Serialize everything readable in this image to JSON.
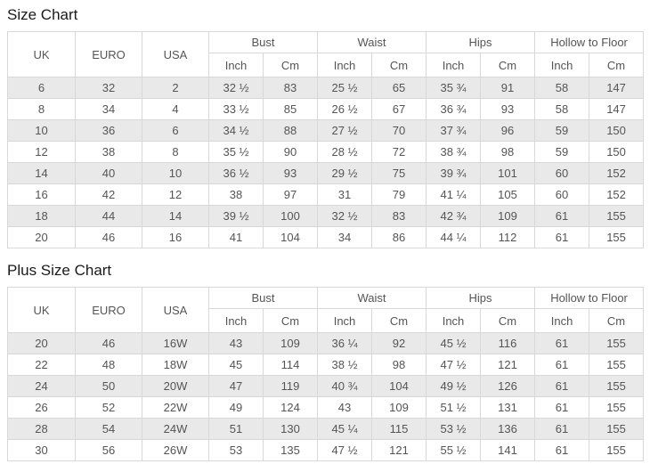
{
  "colors": {
    "stripe_row_background": "#e9e9e9",
    "table_border": "#d8d8d8",
    "cell_text": "#555555",
    "title_text": "#1a1a1a",
    "page_background": "#ffffff"
  },
  "tables": [
    {
      "title": "Size Chart",
      "group_headers": [
        "UK",
        "EURO",
        "USA",
        "Bust",
        "Waist",
        "Hips",
        "Hollow to Floor"
      ],
      "sub_headers": [
        "Inch",
        "Cm"
      ],
      "columns": [
        "UK",
        "EURO",
        "USA",
        "Bust Inch",
        "Bust Cm",
        "Waist Inch",
        "Waist Cm",
        "Hips Inch",
        "Hips Cm",
        "Hollow to Floor Inch",
        "Hollow to Floor Cm"
      ],
      "rows": [
        [
          "6",
          "32",
          "2",
          "32 ½",
          "83",
          "25 ½",
          "65",
          "35 ¾",
          "91",
          "58",
          "147"
        ],
        [
          "8",
          "34",
          "4",
          "33 ½",
          "85",
          "26 ½",
          "67",
          "36 ¾",
          "93",
          "58",
          "147"
        ],
        [
          "10",
          "36",
          "6",
          "34 ½",
          "88",
          "27 ½",
          "70",
          "37 ¾",
          "96",
          "59",
          "150"
        ],
        [
          "12",
          "38",
          "8",
          "35 ½",
          "90",
          "28 ½",
          "72",
          "38 ¾",
          "98",
          "59",
          "150"
        ],
        [
          "14",
          "40",
          "10",
          "36 ½",
          "93",
          "29 ½",
          "75",
          "39 ¾",
          "101",
          "60",
          "152"
        ],
        [
          "16",
          "42",
          "12",
          "38",
          "97",
          "31",
          "79",
          "41 ¼",
          "105",
          "60",
          "152"
        ],
        [
          "18",
          "44",
          "14",
          "39 ½",
          "100",
          "32 ½",
          "83",
          "42 ¾",
          "109",
          "61",
          "155"
        ],
        [
          "20",
          "46",
          "16",
          "41",
          "104",
          "34",
          "86",
          "44 ¼",
          "112",
          "61",
          "155"
        ]
      ]
    },
    {
      "title": "Plus Size Chart",
      "group_headers": [
        "UK",
        "EURO",
        "USA",
        "Bust",
        "Waist",
        "Hips",
        "Hollow to Floor"
      ],
      "sub_headers": [
        "Inch",
        "Cm"
      ],
      "columns": [
        "UK",
        "EURO",
        "USA",
        "Bust Inch",
        "Bust Cm",
        "Waist Inch",
        "Waist Cm",
        "Hips Inch",
        "Hips Cm",
        "Hollow to Floor Inch",
        "Hollow to Floor Cm"
      ],
      "rows": [
        [
          "20",
          "46",
          "16W",
          "43",
          "109",
          "36 ¼",
          "92",
          "45 ½",
          "116",
          "61",
          "155"
        ],
        [
          "22",
          "48",
          "18W",
          "45",
          "114",
          "38 ½",
          "98",
          "47 ½",
          "121",
          "61",
          "155"
        ],
        [
          "24",
          "50",
          "20W",
          "47",
          "119",
          "40 ¾",
          "104",
          "49 ½",
          "126",
          "61",
          "155"
        ],
        [
          "26",
          "52",
          "22W",
          "49",
          "124",
          "43",
          "109",
          "51 ½",
          "131",
          "61",
          "155"
        ],
        [
          "28",
          "54",
          "24W",
          "51",
          "130",
          "45 ¼",
          "115",
          "53 ½",
          "136",
          "61",
          "155"
        ],
        [
          "30",
          "56",
          "26W",
          "53",
          "135",
          "47 ½",
          "121",
          "55 ½",
          "141",
          "61",
          "155"
        ]
      ]
    }
  ]
}
